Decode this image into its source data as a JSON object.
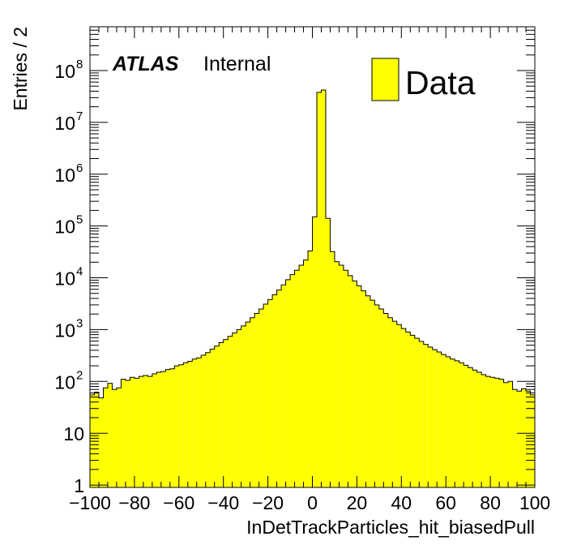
{
  "chart_data": {
    "type": "histogram",
    "xlabel": "InDetTrackParticles_hit_biasedPull",
    "ylabel": "Entries / 2",
    "xlim": [
      -100,
      100
    ],
    "ylim": [
      0.9,
      700000000
    ],
    "y_scale": "log",
    "bin_width": 2,
    "x_ticks": [
      "−100",
      "−80",
      "−60",
      "−40",
      "−20",
      "0",
      "20",
      "40",
      "60",
      "80",
      "100"
    ],
    "y_ticks": [
      {
        "value": 1,
        "base": "1",
        "exp": ""
      },
      {
        "value": 10,
        "base": "10",
        "exp": ""
      },
      {
        "value": 100,
        "base": "10",
        "exp": "2"
      },
      {
        "value": 1000,
        "base": "10",
        "exp": "3"
      },
      {
        "value": 10000,
        "base": "10",
        "exp": "4"
      },
      {
        "value": 100000,
        "base": "10",
        "exp": "5"
      },
      {
        "value": 1000000,
        "base": "10",
        "exp": "6"
      },
      {
        "value": 10000000,
        "base": "10",
        "exp": "7"
      },
      {
        "value": 100000000,
        "base": "10",
        "exp": "8"
      }
    ],
    "atlas_label": "ATLAS",
    "status_label": "Internal",
    "legend_position": "top-right",
    "series": [
      {
        "name": "Data",
        "color": "#ffff00",
        "edge_color": "#000000",
        "bin_edges_start": -100,
        "values": [
          55,
          62,
          48,
          75,
          92,
          70,
          75,
          110,
          105,
          120,
          115,
          125,
          130,
          125,
          140,
          150,
          155,
          170,
          175,
          200,
          210,
          230,
          245,
          270,
          285,
          320,
          360,
          420,
          480,
          560,
          640,
          740,
          860,
          1000,
          1180,
          1400,
          1700,
          2050,
          2500,
          3100,
          3800,
          4700,
          5800,
          7300,
          9200,
          11500,
          14000,
          17500,
          22000,
          33000,
          150000,
          38000000,
          42000000,
          140000,
          32000,
          20500,
          17500,
          14000,
          11000,
          8700,
          7000,
          5600,
          4500,
          3700,
          3000,
          2500,
          2050,
          1700,
          1450,
          1250,
          1050,
          900,
          780,
          680,
          590,
          520,
          460,
          410,
          370,
          330,
          300,
          270,
          250,
          230,
          205,
          185,
          165,
          150,
          135,
          125,
          120,
          115,
          110,
          95,
          100,
          70,
          65,
          72,
          65,
          55
        ]
      }
    ]
  }
}
